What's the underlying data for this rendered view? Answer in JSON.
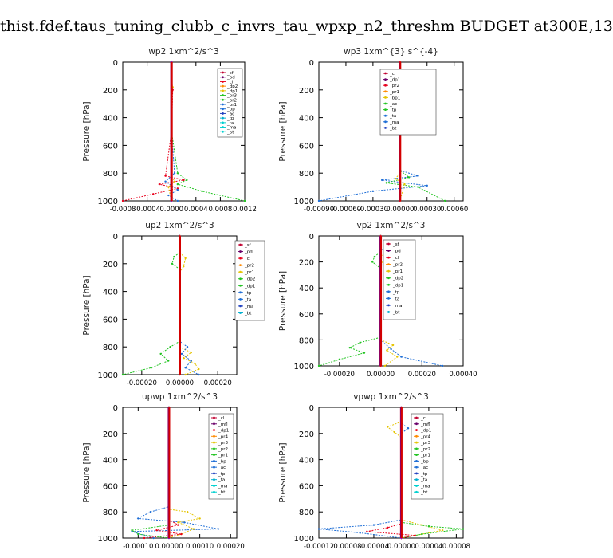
{
  "page": {
    "title": "thist.fdef.taus_tuning_clubb_c_invrs_tau_wpxp_n2_threshm  BUDGET at300E,13"
  },
  "chart_data": [
    {
      "type": "line",
      "title": "wp2   1xm^2/s^3",
      "ylabel": "Pressure [hPa]",
      "ylim": [
        1000,
        0
      ],
      "yticks": [
        "0",
        "200",
        "400",
        "600",
        "800",
        "1000"
      ],
      "xlim": [
        -0.0008,
        0.0012
      ],
      "xticks": [
        "-0.0008",
        "-0.0004",
        "0.0000",
        "0.0004",
        "0.0008",
        "0.0012"
      ],
      "legend": [
        "_sf",
        "_pd",
        "_cl",
        "_dp2",
        "_dp1",
        "_pr3",
        "_pr2",
        "_pr1",
        "_bp",
        "_ac",
        "_tp",
        "_ta",
        "_ma",
        "_bt"
      ],
      "series": [
        {
          "name": "_cl",
          "color": "#e8001c",
          "points": [
            [
              0,
              0
            ],
            [
              0,
              150
            ],
            [
              2e-05,
              200
            ],
            [
              0,
              500
            ],
            [
              -0.0001,
              820
            ],
            [
              0.0002,
              850
            ],
            [
              -0.0002,
              880
            ],
            [
              0.0001,
              910
            ],
            [
              -0.0003,
              950
            ],
            [
              -0.0008,
              1000
            ]
          ]
        },
        {
          "name": "_ac",
          "color": "#22c422",
          "points": [
            [
              0,
              0
            ],
            [
              0,
              500
            ],
            [
              0.0001,
              800
            ],
            [
              0.00025,
              850
            ],
            [
              0.0001,
              880
            ],
            [
              0.0005,
              930
            ],
            [
              0.0012,
              1000
            ]
          ]
        },
        {
          "name": "_tp",
          "color": "#1e6ed6",
          "points": [
            [
              0,
              0
            ],
            [
              0,
              500
            ],
            [
              5e-05,
              800
            ],
            [
              -0.0001,
              860
            ],
            [
              0.0001,
              920
            ],
            [
              -5e-05,
              960
            ],
            [
              0.0001,
              1000
            ]
          ]
        },
        {
          "name": "_pr1",
          "color": "#e5c400",
          "points": [
            [
              0,
              0
            ],
            [
              0,
              140
            ],
            [
              2e-05,
              180
            ],
            [
              0,
              220
            ],
            [
              0,
              820
            ],
            [
              5e-05,
              860
            ],
            [
              -5e-05,
              900
            ],
            [
              0,
              1000
            ]
          ]
        },
        {
          "name": "_dp1",
          "color": "#a000c0",
          "points": [
            [
              0,
              0
            ],
            [
              0,
              1000
            ]
          ]
        }
      ]
    },
    {
      "type": "line",
      "title": "wp3   1xm^{3} s^{-4}",
      "ylabel": "Pressure [hPa]",
      "ylim": [
        1000,
        0
      ],
      "yticks": [
        "0",
        "200",
        "400",
        "600",
        "800",
        "1000"
      ],
      "xlim": [
        -0.0009,
        0.0007
      ],
      "xticks": [
        "-0.00090",
        "-0.00060",
        "-0.00030",
        "0.00000",
        "0.00030",
        "0.00060"
      ],
      "legend": [
        "_cl",
        "_dp1",
        "_pr2",
        "_pr1",
        "_bp1",
        "_ac",
        "_tp",
        "_ta",
        "_ma",
        "_bt"
      ],
      "series": [
        {
          "name": "_tp",
          "color": "#1e6ed6",
          "points": [
            [
              0,
              0
            ],
            [
              0,
              100
            ],
            [
              -5e-05,
              130
            ],
            [
              6e-05,
              150
            ],
            [
              0,
              190
            ],
            [
              0,
              780
            ],
            [
              0.0002,
              820
            ],
            [
              -0.0002,
              850
            ],
            [
              0.0003,
              890
            ],
            [
              -0.0003,
              930
            ],
            [
              -0.0009,
              1000
            ]
          ]
        },
        {
          "name": "_ac",
          "color": "#22c422",
          "points": [
            [
              0,
              0
            ],
            [
              0,
              780
            ],
            [
              0.0001,
              830
            ],
            [
              -0.00015,
              870
            ],
            [
              0.0002,
              900
            ],
            [
              0.0005,
              1000
            ]
          ]
        },
        {
          "name": "_pr1",
          "color": "#e5c400",
          "points": [
            [
              0,
              0
            ],
            [
              0,
              800
            ],
            [
              -5e-05,
              840
            ],
            [
              5e-05,
              880
            ],
            [
              0,
              1000
            ]
          ]
        },
        {
          "name": "_cl",
          "color": "#e8001c",
          "points": [
            [
              0,
              0
            ],
            [
              0,
              1000
            ]
          ]
        }
      ]
    },
    {
      "type": "line",
      "title": "up2   1xm^2/s^3",
      "ylabel": "Pressure [hPa]",
      "ylim": [
        1000,
        0
      ],
      "yticks": [
        "0",
        "200",
        "400",
        "600",
        "800",
        "1000"
      ],
      "xlim": [
        -0.0003,
        0.0003
      ],
      "xticks": [
        "-0.00020",
        "0.00000",
        "0.00020"
      ],
      "legend": [
        "_sf",
        "_pd",
        "_cl",
        "_pr2",
        "_pr1",
        "_dp2",
        "_dp1",
        "_tp",
        "_ta",
        "_ma",
        "_bt"
      ],
      "series": [
        {
          "name": "_dp1",
          "color": "#22c422",
          "points": [
            [
              0,
              0
            ],
            [
              0,
              120
            ],
            [
              -3e-05,
              150
            ],
            [
              -4e-05,
              200
            ],
            [
              0,
              240
            ],
            [
              0,
              760
            ],
            [
              -5e-05,
              800
            ],
            [
              -0.0001,
              850
            ],
            [
              -6e-05,
              900
            ],
            [
              -0.00015,
              950
            ],
            [
              -0.0003,
              1000
            ]
          ]
        },
        {
          "name": "_pr2",
          "color": "#e5c400",
          "points": [
            [
              0,
              0
            ],
            [
              0,
              120
            ],
            [
              3e-05,
              160
            ],
            [
              2e-05,
              220
            ],
            [
              0,
              260
            ],
            [
              0,
              800
            ],
            [
              6e-05,
              840
            ],
            [
              2e-05,
              880
            ],
            [
              8e-05,
              920
            ],
            [
              0.0001,
              960
            ],
            [
              3e-05,
              1000
            ]
          ]
        },
        {
          "name": "_tp",
          "color": "#1e6ed6",
          "points": [
            [
              0,
              0
            ],
            [
              0,
              760
            ],
            [
              4e-05,
              800
            ],
            [
              1e-05,
              850
            ],
            [
              6e-05,
              900
            ],
            [
              3e-05,
              950
            ],
            [
              0.0001,
              1000
            ]
          ]
        },
        {
          "name": "_cl",
          "color": "#e8001c",
          "points": [
            [
              0,
              0
            ],
            [
              0,
              1000
            ]
          ]
        }
      ]
    },
    {
      "type": "line",
      "title": "vp2   1xm^2/s^3",
      "ylabel": "Pressure [hPa]",
      "ylim": [
        1000,
        0
      ],
      "yticks": [
        "0",
        "200",
        "400",
        "600",
        "800",
        "1000"
      ],
      "xlim": [
        -0.0003,
        0.0004
      ],
      "xticks": [
        "-0.00020",
        "0.00000",
        "0.00020",
        "0.00040"
      ],
      "legend": [
        "_sf",
        "_pd",
        "_cl",
        "_pr2",
        "_pr1",
        "_dp2",
        "_dp1",
        "_tp",
        "_ta",
        "_ma",
        "_bt"
      ],
      "series": [
        {
          "name": "_dp1",
          "color": "#22c422",
          "points": [
            [
              0,
              0
            ],
            [
              0,
              120
            ],
            [
              -3e-05,
              160
            ],
            [
              -4e-05,
              200
            ],
            [
              0,
              250
            ],
            [
              0,
              780
            ],
            [
              -0.0001,
              820
            ],
            [
              -0.00015,
              860
            ],
            [
              -8e-05,
              900
            ],
            [
              -0.0002,
              950
            ],
            [
              -0.0003,
              1000
            ]
          ]
        },
        {
          "name": "_pr2",
          "color": "#e5c400",
          "points": [
            [
              0,
              0
            ],
            [
              0,
              130
            ],
            [
              2e-05,
              170
            ],
            [
              0,
              220
            ],
            [
              0,
              800
            ],
            [
              6e-05,
              840
            ],
            [
              3e-05,
              880
            ],
            [
              8e-05,
              930
            ],
            [
              2e-05,
              1000
            ]
          ]
        },
        {
          "name": "_tp",
          "color": "#1e6ed6",
          "points": [
            [
              0,
              0
            ],
            [
              0,
              100
            ],
            [
              6e-05,
              140
            ],
            [
              4e-05,
              190
            ],
            [
              0,
              230
            ],
            [
              0,
              800
            ],
            [
              5e-05,
              870
            ],
            [
              0.0001,
              930
            ],
            [
              0.0003,
              1000
            ]
          ]
        },
        {
          "name": "_cl",
          "color": "#e8001c",
          "points": [
            [
              0,
              0
            ],
            [
              0,
              1000
            ]
          ]
        }
      ]
    },
    {
      "type": "line",
      "title": "upwp   1xm^2/s^3",
      "ylabel": "Pressure [hPa]",
      "ylim": [
        1000,
        0
      ],
      "yticks": [
        "0",
        "200",
        "400",
        "600",
        "800",
        "1000"
      ],
      "xlim": [
        -0.00015,
        0.00022
      ],
      "xticks": [
        "-0.00010",
        "0.00000",
        "0.00010",
        "0.00020"
      ],
      "legend": [
        "_cl",
        "_mfl",
        "_dp1",
        "_pr4",
        "_pr3",
        "_pr2",
        "_pr1",
        "_bp",
        "_ac",
        "_tp",
        "_ta",
        "_ma",
        "_bt"
      ],
      "series": [
        {
          "name": "_tp",
          "color": "#1e6ed6",
          "points": [
            [
              0,
              0
            ],
            [
              0,
              760
            ],
            [
              -6e-05,
              800
            ],
            [
              -0.0001,
              850
            ],
            [
              5e-05,
              880
            ],
            [
              0.00016,
              930
            ],
            [
              -0.00012,
              950
            ],
            [
              -5e-05,
              1000
            ]
          ]
        },
        {
          "name": "_pr3",
          "color": "#e5c400",
          "points": [
            [
              0,
              0
            ],
            [
              0,
              780
            ],
            [
              6e-05,
              800
            ],
            [
              0.0001,
              850
            ],
            [
              3e-05,
              880
            ],
            [
              8e-05,
              930
            ],
            [
              4e-05,
              970
            ],
            [
              0,
              1000
            ]
          ]
        },
        {
          "name": "_dp1",
          "color": "#e8001c",
          "points": [
            [
              0,
              0
            ],
            [
              0,
              860
            ],
            [
              3e-05,
              900
            ],
            [
              -4e-05,
              940
            ],
            [
              4e-05,
              970
            ],
            [
              -8e-05,
              1000
            ]
          ]
        },
        {
          "name": "_ac",
          "color": "#22c422",
          "points": [
            [
              0,
              0
            ],
            [
              0,
              900
            ],
            [
              -0.00012,
              940
            ],
            [
              -0.0001,
              970
            ],
            [
              0,
              1000
            ]
          ]
        },
        {
          "name": "_cl",
          "color": "#a000c0",
          "points": [
            [
              0,
              0
            ],
            [
              0,
              1000
            ]
          ]
        }
      ]
    },
    {
      "type": "line",
      "title": "vpwp   1xm^2/s^3",
      "ylabel": "Pressure [hPa]",
      "ylim": [
        1000,
        0
      ],
      "yticks": [
        "0",
        "200",
        "400",
        "600",
        "800",
        "1000"
      ],
      "xlim": [
        -0.00012,
        9e-05
      ],
      "xticks": [
        "-0.00012",
        "-0.00008",
        "-0.00004",
        "0.00000",
        "0.00004",
        "0.00008"
      ],
      "legend": [
        "_cl",
        "_mfl",
        "_dp1",
        "_pr4",
        "_pr3",
        "_pr2",
        "_pr1",
        "_bp",
        "_ac",
        "_tp",
        "_ta",
        "_ma",
        "_bt"
      ],
      "series": [
        {
          "name": "_tp",
          "color": "#1e6ed6",
          "points": [
            [
              0,
              0
            ],
            [
              0,
              120
            ],
            [
              1e-05,
              160
            ],
            [
              0,
              200
            ],
            [
              0,
              860
            ],
            [
              -4e-05,
              900
            ],
            [
              -0.00012,
              930
            ],
            [
              -6e-05,
              960
            ],
            [
              0,
              1000
            ]
          ]
        },
        {
          "name": "_pr2",
          "color": "#e5c400",
          "points": [
            [
              0,
              0
            ],
            [
              0,
              110
            ],
            [
              -2e-05,
              150
            ],
            [
              -1e-05,
              190
            ],
            [
              0,
              230
            ],
            [
              0,
              860
            ],
            [
              3e-05,
              900
            ],
            [
              6e-05,
              940
            ],
            [
              2e-05,
              980
            ],
            [
              0,
              1000
            ]
          ]
        },
        {
          "name": "_ac",
          "color": "#22c422",
          "points": [
            [
              0,
              0
            ],
            [
              0,
              880
            ],
            [
              4e-05,
              910
            ],
            [
              9e-05,
              930
            ],
            [
              3e-05,
              970
            ],
            [
              0,
              1000
            ]
          ]
        },
        {
          "name": "_dp1",
          "color": "#e8001c",
          "points": [
            [
              0,
              0
            ],
            [
              0,
              890
            ],
            [
              -2e-05,
              920
            ],
            [
              -5e-05,
              950
            ],
            [
              2e-05,
              980
            ],
            [
              0,
              1000
            ]
          ]
        },
        {
          "name": "_cl",
          "color": "#a000c0",
          "points": [
            [
              0,
              0
            ],
            [
              0,
              1000
            ]
          ]
        }
      ]
    }
  ]
}
